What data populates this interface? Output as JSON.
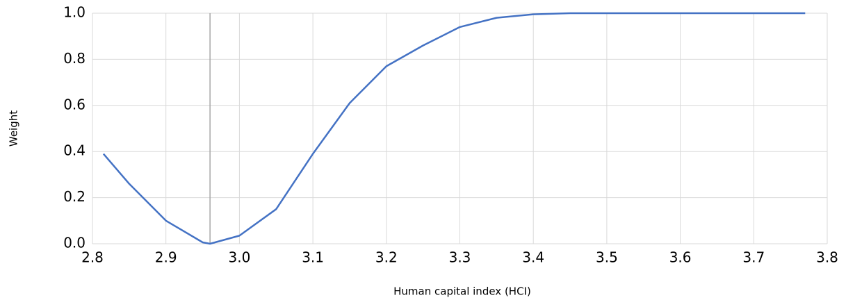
{
  "chart_data": {
    "type": "line",
    "y_label": "Weight",
    "x_label": "Human capital index (HCI)",
    "x": [
      2.815,
      2.85,
      2.9,
      2.95,
      2.96,
      3.0,
      3.05,
      3.1,
      3.15,
      3.2,
      3.25,
      3.3,
      3.35,
      3.4,
      3.45,
      3.5,
      3.6,
      3.7,
      3.77
    ],
    "series": [
      {
        "color": "#4472c4",
        "values": [
          0.39,
          0.26,
          0.1,
          0.006,
          0,
          0.035,
          0.15,
          0.39,
          0.61,
          0.77,
          0.86,
          0.94,
          0.98,
          0.995,
          1.0,
          1.0,
          1.0,
          1.0,
          1.0
        ]
      }
    ],
    "vline": 2.96,
    "vline_color": "#a6a6a6",
    "xlim": [
      2.8,
      3.8
    ],
    "xticks": [
      2.8,
      2.9,
      {
        "value": 3,
        "label": "3.0"
      },
      3.1,
      3.2,
      3.3,
      3.4,
      3.5,
      3.6,
      3.7,
      3.8
    ],
    "ylim": [
      0,
      1
    ],
    "yticks": [
      {
        "value": 0,
        "label": "0.0"
      },
      0.2,
      0.4,
      0.6,
      0.8,
      {
        "value": 1,
        "label": "1.0"
      }
    ],
    "grid": true
  }
}
